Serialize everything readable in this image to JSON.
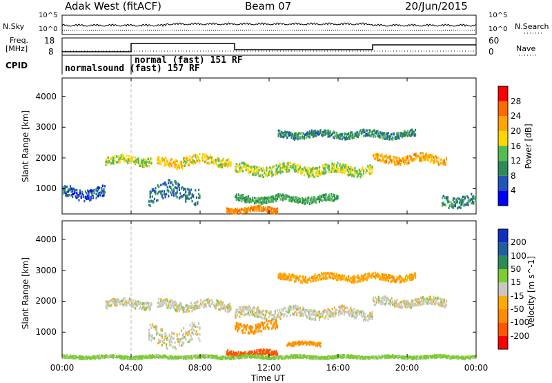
{
  "header": {
    "radar": "Adak West (fitACF)",
    "beam": "Beam 07",
    "date": "20/Jun/2015"
  },
  "top_strip": {
    "nsky_label": "N.Sky",
    "nsearch_label": "N.Search",
    "noise_ticks_left": [
      "10^5",
      "10^0"
    ],
    "noise_ticks_right": [
      "10^5",
      "10^0"
    ],
    "freq_label_line1": "Freq.",
    "freq_label_line2": "[MHz]",
    "freq_ticks": [
      "18",
      "8"
    ],
    "nave_label": "Nave",
    "nave_ticks": [
      "60",
      "0"
    ],
    "cpid_label": "CPID",
    "mode_1": "normalsound (fast) 157 RF",
    "mode_2": "normal (fast) 151 RF"
  },
  "x_axis": {
    "label": "Time UT",
    "ticks": [
      "00:00",
      "04:00",
      "08:00",
      "12:00",
      "16:00",
      "20:00",
      "00:00"
    ]
  },
  "colors": {
    "power_scale": [
      "#0000ff",
      "#2255bb",
      "#2e8b57",
      "#55bb55",
      "#ffd700",
      "#ffa500",
      "#ff6a00",
      "#ff0000"
    ],
    "velocity_scale": [
      "#ff0000",
      "#ff5500",
      "#ff8c00",
      "#ffaa00",
      "#c8c8c0",
      "#7dcc33",
      "#2e8b57",
      "#1f5fa0",
      "#1030c0"
    ],
    "ground_scatter": "#c8c8c0"
  },
  "chart_data": [
    {
      "type": "heatmap",
      "title": "Power",
      "xlabel": "Time UT",
      "ylabel": "Slant Range [km]",
      "colorbar_label": "Power [dB]",
      "colorbar_ticks": [
        "4",
        "8",
        "12",
        "16",
        "20",
        "24",
        "28"
      ],
      "y_ticks": [
        "1000",
        "2000",
        "3000",
        "4000"
      ],
      "xlim_hours": [
        0,
        24
      ],
      "ylim_km": [
        180,
        4600
      ],
      "echo_bands": [
        {
          "t0": 2.5,
          "t1": 5.2,
          "r_center": 1950,
          "r_width": 180,
          "power": 16
        },
        {
          "t0": 5.5,
          "t1": 7.0,
          "r_center": 1850,
          "r_width": 200,
          "power": 20
        },
        {
          "t0": 7.0,
          "t1": 9.8,
          "r_center": 1950,
          "r_width": 200,
          "power": 18
        },
        {
          "t0": 10.0,
          "t1": 18.0,
          "r_center": 1650,
          "r_width": 220,
          "power": 16
        },
        {
          "t0": 18.0,
          "t1": 22.3,
          "r_center": 2000,
          "r_width": 180,
          "power": 22
        },
        {
          "t0": 12.5,
          "t1": 20.5,
          "r_center": 2800,
          "r_width": 150,
          "power": 10
        },
        {
          "t0": 5.0,
          "t1": 8.0,
          "r_center": 900,
          "r_width": 400,
          "power": 8
        },
        {
          "t0": 9.5,
          "t1": 12.5,
          "r_center": 350,
          "r_width": 120,
          "power": 24
        },
        {
          "t0": 0.0,
          "t1": 2.5,
          "r_center": 900,
          "r_width": 250,
          "power": 6
        },
        {
          "t0": 22.0,
          "t1": 24.0,
          "r_center": 650,
          "r_width": 250,
          "power": 10
        },
        {
          "t0": 10.0,
          "t1": 16.0,
          "r_center": 700,
          "r_width": 150,
          "power": 12
        }
      ]
    },
    {
      "type": "heatmap",
      "title": "Velocity",
      "xlabel": "Time UT",
      "ylabel": "Slant Range [km]",
      "colorbar_label": "Velocity [m s^-1]",
      "colorbar_ticks": [
        "-200",
        "-100",
        "-50",
        "-15",
        "15",
        "50",
        "100",
        "200"
      ],
      "y_ticks": [
        "1000",
        "2000",
        "3000",
        "4000"
      ],
      "xlim_hours": [
        0,
        24
      ],
      "ylim_km": [
        180,
        4600
      ],
      "echo_bands": [
        {
          "t0": 2.5,
          "t1": 5.2,
          "r_center": 1950,
          "r_width": 180,
          "velocity": 0
        },
        {
          "t0": 5.5,
          "t1": 9.8,
          "r_center": 1900,
          "r_width": 200,
          "velocity": 0
        },
        {
          "t0": 10.0,
          "t1": 18.0,
          "r_center": 1650,
          "r_width": 220,
          "velocity": 0
        },
        {
          "t0": 18.0,
          "t1": 22.3,
          "r_center": 2000,
          "r_width": 180,
          "velocity": 0
        },
        {
          "t0": 12.5,
          "t1": 20.5,
          "r_center": 2800,
          "r_width": 150,
          "velocity": -40
        },
        {
          "t0": 10.0,
          "t1": 12.5,
          "r_center": 1200,
          "r_width": 200,
          "velocity": -60
        },
        {
          "t0": 9.5,
          "t1": 12.5,
          "r_center": 350,
          "r_width": 120,
          "velocity": -150
        },
        {
          "t0": 13.0,
          "t1": 15.0,
          "r_center": 650,
          "r_width": 80,
          "velocity": -60
        },
        {
          "t0": 0.0,
          "t1": 24.0,
          "r_center": 230,
          "r_width": 60,
          "velocity": 30
        },
        {
          "t0": 5.0,
          "t1": 8.0,
          "r_center": 900,
          "r_width": 400,
          "velocity": 0
        }
      ]
    }
  ]
}
